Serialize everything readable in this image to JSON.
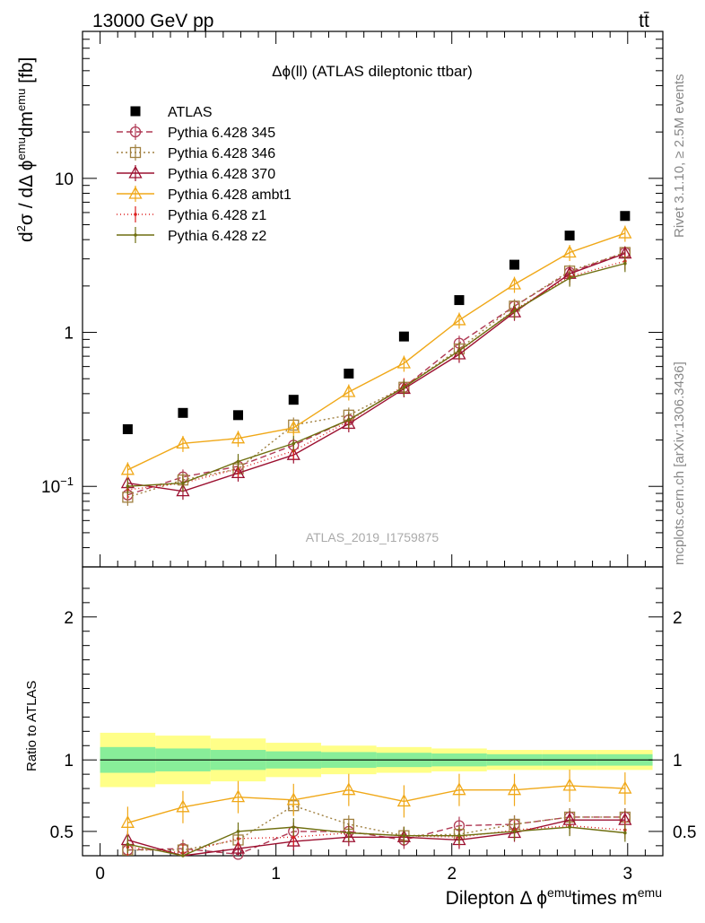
{
  "header": {
    "left": "13000 GeV pp",
    "right": "tt̄",
    "side_top": "Rivet 3.1.10, ≥ 2.5M events",
    "side_bottom": "mcplots.cern.ch [arXiv:1306.3436]"
  },
  "chart_data": {
    "type": "line",
    "title": "Δϕ(ll) (ATLAS dileptonic ttbar)",
    "watermark": "ATLAS_2019_I1759875",
    "xlabel": "Dilepton Δ ϕ^emu times m^emu",
    "ylabel": "d²σ / dΔ ϕ^emu dm^emu [fb]",
    "ratio_ylabel": "Ratio to ATLAS",
    "x": [
      0.157,
      0.471,
      0.785,
      1.1,
      1.414,
      1.728,
      2.042,
      2.356,
      2.67,
      2.985
    ],
    "x_edges": [
      0.0,
      0.314,
      0.628,
      0.942,
      1.257,
      1.571,
      1.885,
      2.199,
      2.513,
      2.827,
      3.1416
    ],
    "xlim": [
      -0.1,
      3.2
    ],
    "ylim": [
      0.03,
      90
    ],
    "yscale": "log",
    "ratio_ylim": [
      0.33,
      2.35
    ],
    "x_ticks": [
      "0",
      "1",
      "2",
      "3"
    ],
    "y_ticks": [
      "10^{-1}",
      "1",
      "10"
    ],
    "ratio_ticks": [
      "0.5",
      "1",
      "2"
    ],
    "legend_position": "top-left",
    "data": {
      "name": "ATLAS",
      "color": "#000000",
      "values": [
        0.235,
        0.3,
        0.29,
        0.365,
        0.54,
        0.94,
        1.62,
        2.75,
        4.25,
        5.7
      ],
      "ratio_band_inner": [
        0.09,
        0.08,
        0.07,
        0.06,
        0.055,
        0.05,
        0.045,
        0.04,
        0.04,
        0.04
      ],
      "ratio_band_outer": [
        0.19,
        0.17,
        0.15,
        0.12,
        0.1,
        0.09,
        0.08,
        0.07,
        0.07,
        0.07
      ]
    },
    "series": [
      {
        "name": "Pythia 6.428 345",
        "color": "#b03a55",
        "dash": "7,4",
        "marker": "circle",
        "values": [
          0.088,
          0.115,
          0.135,
          0.185,
          0.27,
          0.44,
          0.85,
          1.48,
          2.45,
          3.3
        ],
        "ratio": [
          0.37,
          0.38,
          0.34,
          0.5,
          0.5,
          0.44,
          0.54,
          0.55,
          0.6,
          0.6
        ],
        "err": [
          0.015,
          0.012,
          0.01,
          0.012,
          0.015,
          0.02,
          0.03,
          0.04,
          0.06,
          0.08
        ]
      },
      {
        "name": "Pythia 6.428 346",
        "color": "#a08040",
        "dash": "2,3",
        "marker": "square",
        "values": [
          0.085,
          0.11,
          0.13,
          0.25,
          0.29,
          0.44,
          0.78,
          1.48,
          2.5,
          3.3
        ],
        "ratio": [
          0.37,
          0.37,
          0.44,
          0.68,
          0.55,
          0.47,
          0.48,
          0.55,
          0.6,
          0.6
        ],
        "err": [
          0.015,
          0.012,
          0.01,
          0.012,
          0.015,
          0.02,
          0.03,
          0.04,
          0.06,
          0.08
        ]
      },
      {
        "name": "Pythia 6.428 370",
        "color": "#9c1030",
        "dash": "",
        "marker": "triangle",
        "values": [
          0.105,
          0.093,
          0.122,
          0.16,
          0.255,
          0.43,
          0.72,
          1.35,
          2.4,
          3.25
        ],
        "ratio": [
          0.44,
          0.31,
          0.38,
          0.43,
          0.46,
          0.46,
          0.44,
          0.49,
          0.58,
          0.58
        ],
        "err": [
          0.015,
          0.012,
          0.01,
          0.012,
          0.015,
          0.02,
          0.03,
          0.04,
          0.06,
          0.08
        ]
      },
      {
        "name": "Pythia 6.428 ambt1",
        "color": "#f0a818",
        "dash": "",
        "marker": "triangle",
        "values": [
          0.128,
          0.19,
          0.205,
          0.24,
          0.41,
          0.63,
          1.2,
          2.05,
          3.3,
          4.4
        ],
        "ratio": [
          0.56,
          0.67,
          0.74,
          0.72,
          0.79,
          0.71,
          0.79,
          0.79,
          0.82,
          0.8
        ],
        "err": [
          0.015,
          0.02,
          0.02,
          0.018,
          0.025,
          0.03,
          0.06,
          0.1,
          0.15,
          0.18
        ]
      },
      {
        "name": "Pythia 6.428 z1",
        "color": "#dd2020",
        "dash": "1,3",
        "marker": "dot",
        "values": [
          0.095,
          0.105,
          0.13,
          0.17,
          0.265,
          0.45,
          0.75,
          1.4,
          2.3,
          2.9
        ],
        "ratio": [
          0.39,
          0.35,
          0.45,
          0.46,
          0.49,
          0.47,
          0.46,
          0.51,
          0.54,
          0.51
        ],
        "err": [
          0.015,
          0.012,
          0.01,
          0.012,
          0.015,
          0.02,
          0.03,
          0.04,
          0.06,
          0.08
        ]
      },
      {
        "name": "Pythia 6.428 z2",
        "color": "#6f6f10",
        "dash": "",
        "marker": "dot",
        "values": [
          0.1,
          0.105,
          0.145,
          0.19,
          0.27,
          0.44,
          0.76,
          1.38,
          2.25,
          2.8
        ],
        "ratio": [
          0.41,
          0.33,
          0.5,
          0.53,
          0.49,
          0.47,
          0.47,
          0.5,
          0.53,
          0.49
        ],
        "err": [
          0.015,
          0.012,
          0.01,
          0.012,
          0.015,
          0.02,
          0.03,
          0.04,
          0.06,
          0.08
        ]
      }
    ]
  }
}
